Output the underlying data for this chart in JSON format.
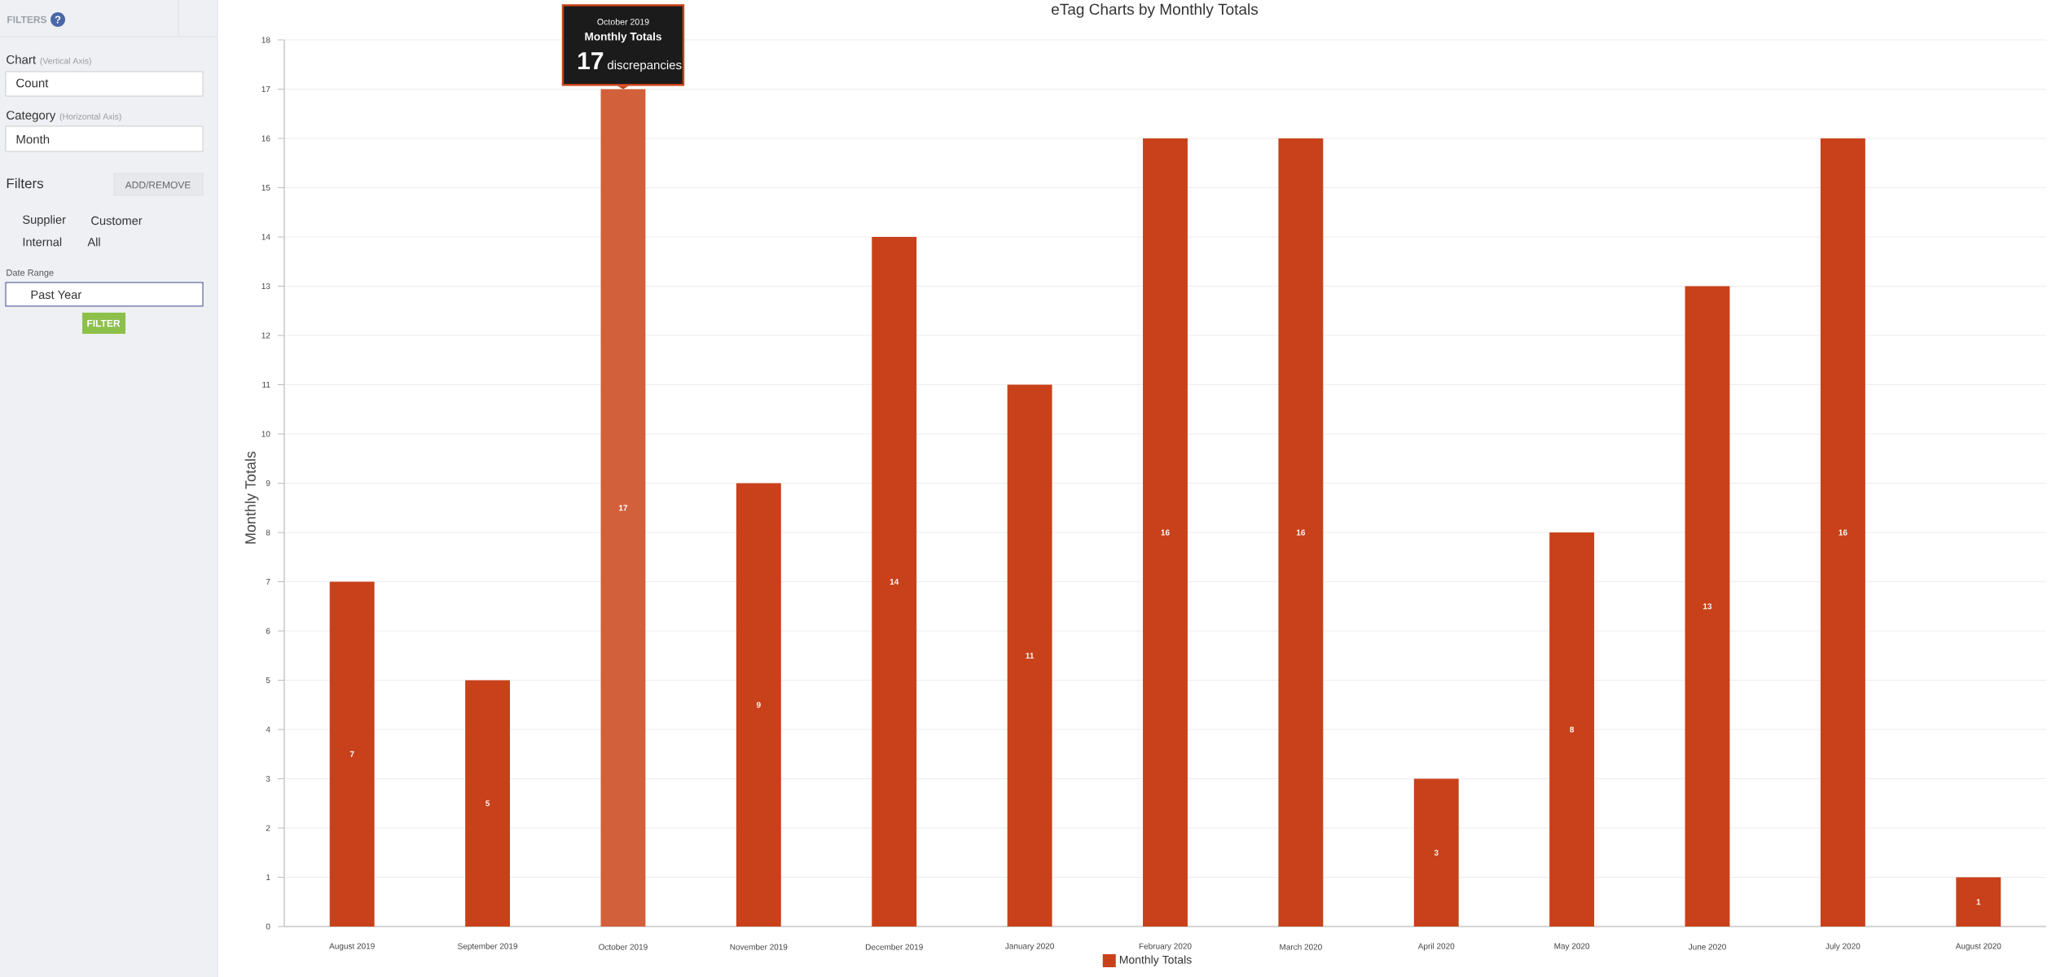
{
  "chart_data": [
    {
      "type": "other",
      "annotations": [
        "FILTERS",
        "?",
        "Chart",
        "(Vertical Axis)",
        "Count",
        "Category",
        "(Horizontal Axis)",
        "Month",
        "Filters",
        "ADD/REMOVE",
        "Supplier",
        "Customer",
        "Internal",
        "All",
        "Date Range",
        "Past Year",
        "FILTER"
      ]
    },
    {
      "type": "bar",
      "title": "eTag Charts by Monthly Totals",
      "ylabel": "Monthly Totals",
      "annotations": [
        "October 2019",
        "Monthly Totals",
        "17",
        {
          "text": "discrepancies",
          "x": "October 2019",
          "y": 17
        }
      ],
      "categories": [
        "August 2019",
        "September 2019",
        "October 2019",
        "November 2019",
        "December 2019",
        "January 2020",
        "February 2020",
        "March 2020",
        "April 2020",
        "May 2020",
        "June 2020",
        "July 2020",
        "August 2020"
      ],
      "series": [
        {
          "name": "Monthly Totals",
          "color": "#c8411a",
          "colors": [
            "#c8411a",
            "#c8411a",
            "#d2603a",
            "#c8411a",
            "#c8411a",
            "#c8411a",
            "#c8411a",
            "#c8411a",
            "#c8411a",
            "#c8411a",
            "#c8411a",
            "#c8411a",
            "#c8411a"
          ],
          "values": [
            7,
            5,
            17,
            9,
            14,
            11,
            16,
            16,
            3,
            8,
            13,
            16,
            1
          ]
        }
      ],
      "ylim": [
        0,
        18
      ],
      "yticks": [
        0,
        1,
        2,
        3,
        4,
        5,
        6,
        7,
        8,
        9,
        10,
        11,
        12,
        13,
        14,
        15,
        16,
        17,
        18
      ],
      "grid": "y",
      "legend": "bottom",
      "data_labels": true
    }
  ]
}
